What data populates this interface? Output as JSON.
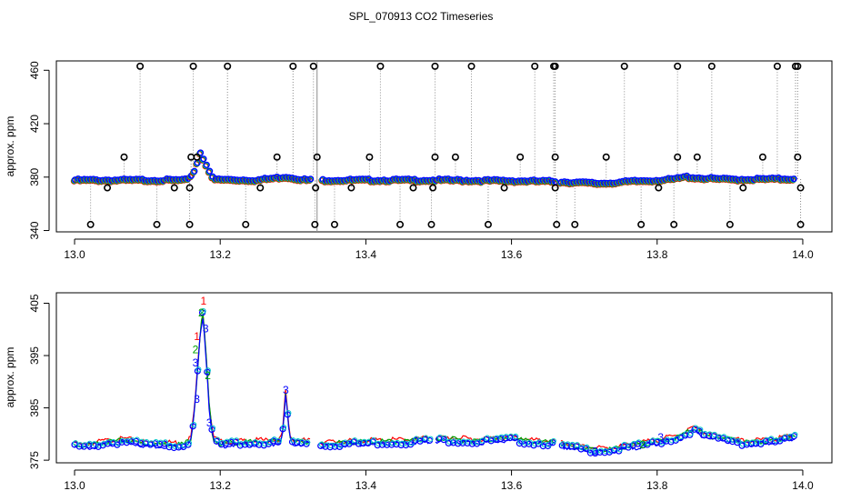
{
  "figure_title": "SPL_070913  CO2 Timeseries",
  "colors": {
    "frame": "#000000",
    "outlier": "#000000",
    "dotted": "#8c8c8c",
    "series1": "#ff0000",
    "series2": "#00a000",
    "series3": "#0000ff",
    "series4": "#00c8c8"
  },
  "chart_data": [
    {
      "type": "scatter",
      "title": "",
      "xlabel": "",
      "ylabel": "approx. ppm",
      "xlim": [
        12.975,
        14.04
      ],
      "ylim": [
        339,
        467
      ],
      "xticks": [
        13.0,
        13.2,
        13.4,
        13.6,
        13.8,
        14.0
      ],
      "xtick_labels": [
        "13.0",
        "13.2",
        "13.4",
        "13.6",
        "13.8",
        "14.0"
      ],
      "yticks": [
        340,
        380,
        420,
        460
      ],
      "ytick_labels": [
        "340",
        "380",
        "420",
        "460"
      ],
      "baseline": [
        [
          13.0,
          377.5
        ],
        [
          13.1,
          377.5
        ],
        [
          13.155,
          377.5
        ],
        [
          13.165,
          385
        ],
        [
          13.172,
          398
        ],
        [
          13.18,
          390
        ],
        [
          13.19,
          378
        ],
        [
          13.25,
          377.5
        ],
        [
          13.29,
          380
        ],
        [
          13.32,
          377.5
        ],
        [
          13.5,
          377.5
        ],
        [
          13.6,
          377
        ],
        [
          13.66,
          376.5
        ],
        [
          13.72,
          375
        ],
        [
          13.78,
          377
        ],
        [
          13.82,
          378
        ],
        [
          13.84,
          380
        ],
        [
          13.86,
          379
        ],
        [
          13.9,
          378
        ],
        [
          13.99,
          378.5
        ]
      ],
      "gaps": [
        [
          13.325,
          13.337
        ],
        [
          13.66,
          13.667
        ]
      ],
      "outliers_high": [
        13.09,
        13.163,
        13.21,
        13.3,
        13.328,
        13.42,
        13.495,
        13.545,
        13.632,
        13.658,
        13.66,
        13.755,
        13.828,
        13.875,
        13.965,
        13.99,
        13.993
      ],
      "outliers_low": [
        13.022,
        13.113,
        13.158,
        13.235,
        13.33,
        13.357,
        13.447,
        13.49,
        13.568,
        13.662,
        13.687,
        13.778,
        13.823,
        13.9,
        13.997
      ],
      "outliers_mid_high": [
        13.068,
        13.16,
        13.168,
        13.278,
        13.333,
        13.405,
        13.495,
        13.523,
        13.612,
        13.66,
        13.73,
        13.828,
        13.855,
        13.945,
        13.993
      ],
      "outliers_mid_low": [
        13.045,
        13.137,
        13.158,
        13.255,
        13.331,
        13.38,
        13.465,
        13.492,
        13.59,
        13.66,
        13.802,
        13.918,
        13.997
      ]
    },
    {
      "type": "line",
      "title": "",
      "xlabel": "",
      "ylabel": "approx. ppm",
      "xlim": [
        12.975,
        14.04
      ],
      "ylim": [
        374.5,
        407
      ],
      "xticks": [
        13.0,
        13.2,
        13.4,
        13.6,
        13.8,
        14.0
      ],
      "xtick_labels": [
        "13.0",
        "13.2",
        "13.4",
        "13.6",
        "13.8",
        "14.0"
      ],
      "yticks": [
        375,
        385,
        395,
        405
      ],
      "ytick_labels": [
        "375",
        "385",
        "395",
        "405"
      ],
      "series": [
        {
          "name": "1",
          "color": "#ff0000",
          "offset": 0.5
        },
        {
          "name": "2",
          "color": "#00a000",
          "offset": 0.2
        },
        {
          "name": "3",
          "color": "#0000ff",
          "offset": -0.2
        }
      ],
      "profile": [
        [
          13.0,
          377.8
        ],
        [
          13.01,
          377.4
        ],
        [
          13.04,
          378.2
        ],
        [
          13.07,
          378.6
        ],
        [
          13.1,
          377.9
        ],
        [
          13.15,
          377.9
        ],
        [
          13.16,
          379
        ],
        [
          13.165,
          385
        ],
        [
          13.172,
          398
        ],
        [
          13.176,
          403.5
        ],
        [
          13.18,
          396
        ],
        [
          13.185,
          385
        ],
        [
          13.19,
          379
        ],
        [
          13.2,
          378
        ],
        [
          13.25,
          378.3
        ],
        [
          13.28,
          378.4
        ],
        [
          13.285,
          379
        ],
        [
          13.29,
          388
        ],
        [
          13.295,
          379.5
        ],
        [
          13.3,
          378.3
        ],
        [
          13.325,
          378.3
        ],
        [
          13.337,
          377.9
        ],
        [
          13.4,
          378.3
        ],
        [
          13.45,
          378.4
        ],
        [
          13.49,
          378.8
        ],
        [
          13.52,
          378.8
        ],
        [
          13.55,
          378.5
        ],
        [
          13.6,
          379
        ],
        [
          13.63,
          378.3
        ],
        [
          13.66,
          378.2
        ],
        [
          13.667,
          377.8
        ],
        [
          13.7,
          377
        ],
        [
          13.73,
          376.8
        ],
        [
          13.76,
          377.4
        ],
        [
          13.8,
          378.4
        ],
        [
          13.83,
          379.3
        ],
        [
          13.85,
          380.8
        ],
        [
          13.87,
          379.4
        ],
        [
          13.9,
          378.9
        ],
        [
          13.92,
          378.2
        ],
        [
          13.96,
          378.5
        ],
        [
          13.99,
          379.3
        ]
      ],
      "gaps": [
        [
          13.325,
          13.337
        ],
        [
          13.488,
          13.495
        ],
        [
          13.66,
          13.667
        ]
      ],
      "labels": [
        {
          "text": "1",
          "series": "1",
          "x": 13.177,
          "y": 405.3
        },
        {
          "text": "2",
          "series": "2",
          "x": 13.174,
          "y": 403
        },
        {
          "text": "3",
          "series": "3",
          "x": 13.18,
          "y": 400
        },
        {
          "text": "1",
          "series": "1",
          "x": 13.168,
          "y": 398.5
        },
        {
          "text": "2",
          "series": "2",
          "x": 13.166,
          "y": 396
        },
        {
          "text": "3",
          "series": "3",
          "x": 13.166,
          "y": 393.5
        },
        {
          "text": "2",
          "series": "2",
          "x": 13.183,
          "y": 391
        },
        {
          "text": "3",
          "series": "3",
          "x": 13.168,
          "y": 386.5
        },
        {
          "text": "3",
          "series": "3",
          "x": 13.185,
          "y": 382
        },
        {
          "text": "3",
          "series": "3",
          "x": 13.29,
          "y": 388.3
        },
        {
          "text": "3",
          "series": "3",
          "x": 13.715,
          "y": 376.5
        },
        {
          "text": "2",
          "series": "2",
          "x": 13.78,
          "y": 377.8
        },
        {
          "text": "3",
          "series": "3",
          "x": 13.805,
          "y": 379.2
        }
      ]
    }
  ]
}
